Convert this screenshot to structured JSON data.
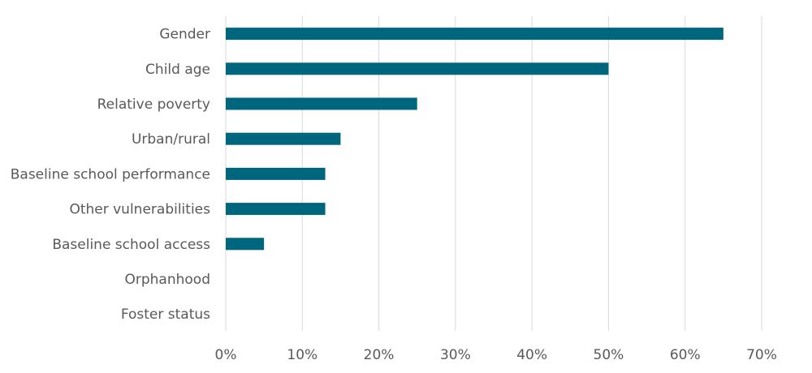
{
  "chart_data": {
    "type": "bar",
    "orientation": "horizontal",
    "categories": [
      "Gender",
      "Child age",
      "Relative poverty",
      "Urban/rural",
      "Baseline school performance",
      "Other vulnerabilities",
      "Baseline school access",
      "Orphanhood",
      "Foster status"
    ],
    "values": [
      65,
      50,
      25,
      15,
      13,
      13,
      5,
      0,
      0
    ],
    "value_unit": "%",
    "xlim": [
      0,
      70
    ],
    "x_ticks": [
      0,
      10,
      20,
      30,
      40,
      50,
      60,
      70
    ],
    "x_tick_labels": [
      "0%",
      "10%",
      "20%",
      "30%",
      "40%",
      "50%",
      "60%",
      "70%"
    ],
    "title": "",
    "xlabel": "",
    "ylabel": "",
    "grid": "vertical",
    "legend": "none",
    "bar_color": "#00667d",
    "grid_color": "#d9d9d9",
    "text_color": "#595959"
  }
}
